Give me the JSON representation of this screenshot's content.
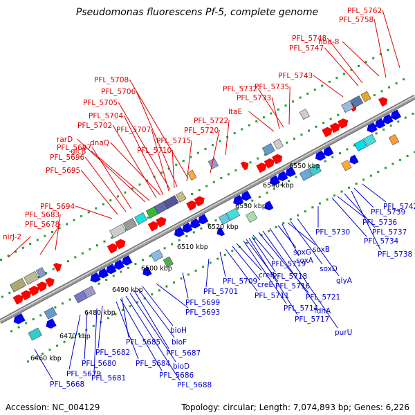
{
  "title": "Pseudomonas fluorescens Pf-5, complete genome",
  "footer": {
    "accession": "Accession: NC_004129",
    "summary": "Topology: circular; Length: 7,074,893 bp; Genes: 6,226"
  },
  "colors": {
    "forward_label": "#dd0000",
    "reverse_label": "#0000cc",
    "forward_gene": "#ff0000",
    "reverse_gene": "#0000ee",
    "backbone": "#999999",
    "track_dot": "#2a9d2a"
  },
  "scale_labels": [
    "6460 kbp",
    "6470 kbp",
    "6480 kbp",
    "6490 kbp",
    "6500 kbp",
    "6510 kbp",
    "6520 kbp",
    "6530 kbp",
    "6540 kbp",
    "6550 kbp"
  ],
  "forward_labels": [
    "nirJ-2",
    "PFL_5678",
    "PFL_5683",
    "PFL_5694",
    "PFL_5695",
    "PFL_5696",
    "PFL_5697",
    "rarD",
    "glcB",
    "PFL_5702",
    "dnaQ",
    "PFL_5704",
    "PFL_5707",
    "PFL_5705",
    "PFL_5710",
    "PFL_5706",
    "PFL_5715",
    "PFL_5708",
    "PFL_5720",
    "PFL_5722",
    "ltaE",
    "PFL_5733",
    "PFL_5732",
    "PFL_5735",
    "PFL_5743",
    "PFL_5747",
    "PFL_5748",
    "hbd-8",
    "PFL_5758",
    "PFL_5762"
  ],
  "reverse_labels": [
    "PFL_5668",
    "PFL_5679",
    "PFL_5680",
    "PFL_5681",
    "PFL_5682",
    "PFL_5684",
    "PFL_5686",
    "PFL_5688",
    "PFL_5685",
    "bioD",
    "PFL_5687",
    "bioF",
    "bioH",
    "PFL_5693",
    "PFL_5699",
    "PFL_5701",
    "PFL_5709",
    "PFL_5711",
    "creE",
    "creB",
    "PFL_5714",
    "PFL_5716",
    "PFL_5717",
    "PFL_5718",
    "PFL_5719",
    "PFL_5721",
    "fdhA",
    "purU",
    "soxG",
    "soxA",
    "soxB",
    "soxD",
    "glyA",
    "PFL_5730",
    "PFL_5734",
    "PFL_5736",
    "PFL_5737",
    "PFL_5738",
    "PFL_5739",
    "PFL_5742"
  ]
}
